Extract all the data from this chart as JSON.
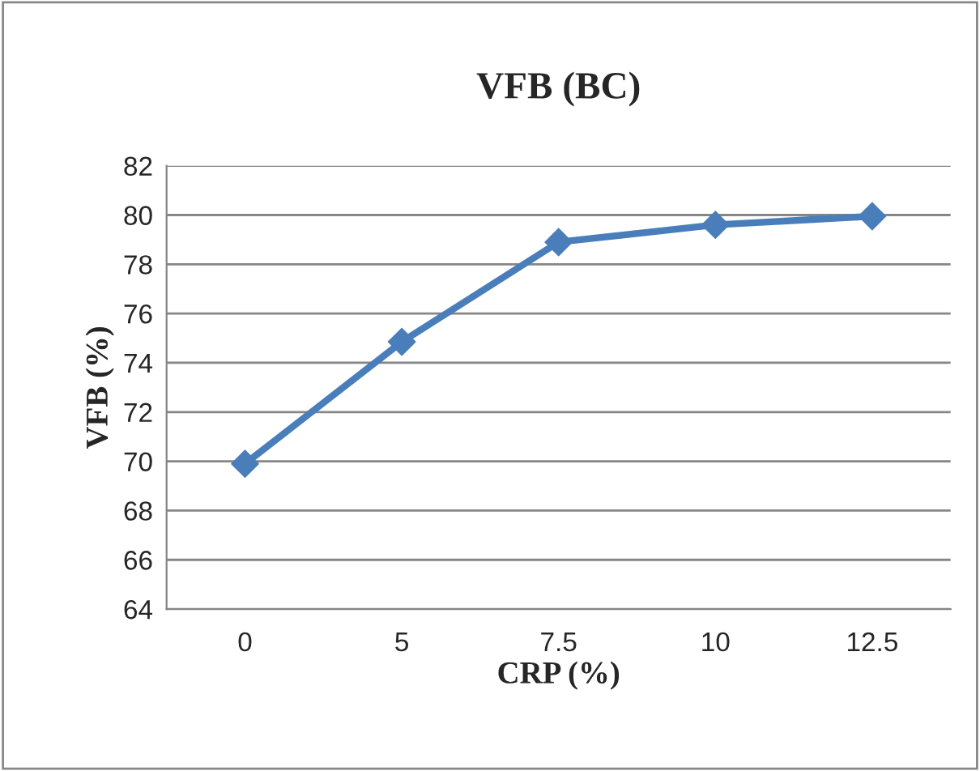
{
  "chart_data": {
    "type": "line",
    "title": "VFB (BC)",
    "xlabel": "CRP (%)",
    "ylabel": "VFB (%)",
    "categories": [
      "0",
      "5",
      "7.5",
      "10",
      "12.5"
    ],
    "series": [
      {
        "color": "#4a7ebb",
        "values": [
          69.9,
          74.85,
          78.9,
          79.6,
          79.95
        ]
      }
    ],
    "ylim": [
      64,
      82
    ],
    "yticks": [
      64,
      66,
      68,
      70,
      72,
      74,
      76,
      78,
      80,
      82
    ],
    "grid": "y",
    "legend": false,
    "marker": "diamond",
    "line_style": "solid"
  }
}
